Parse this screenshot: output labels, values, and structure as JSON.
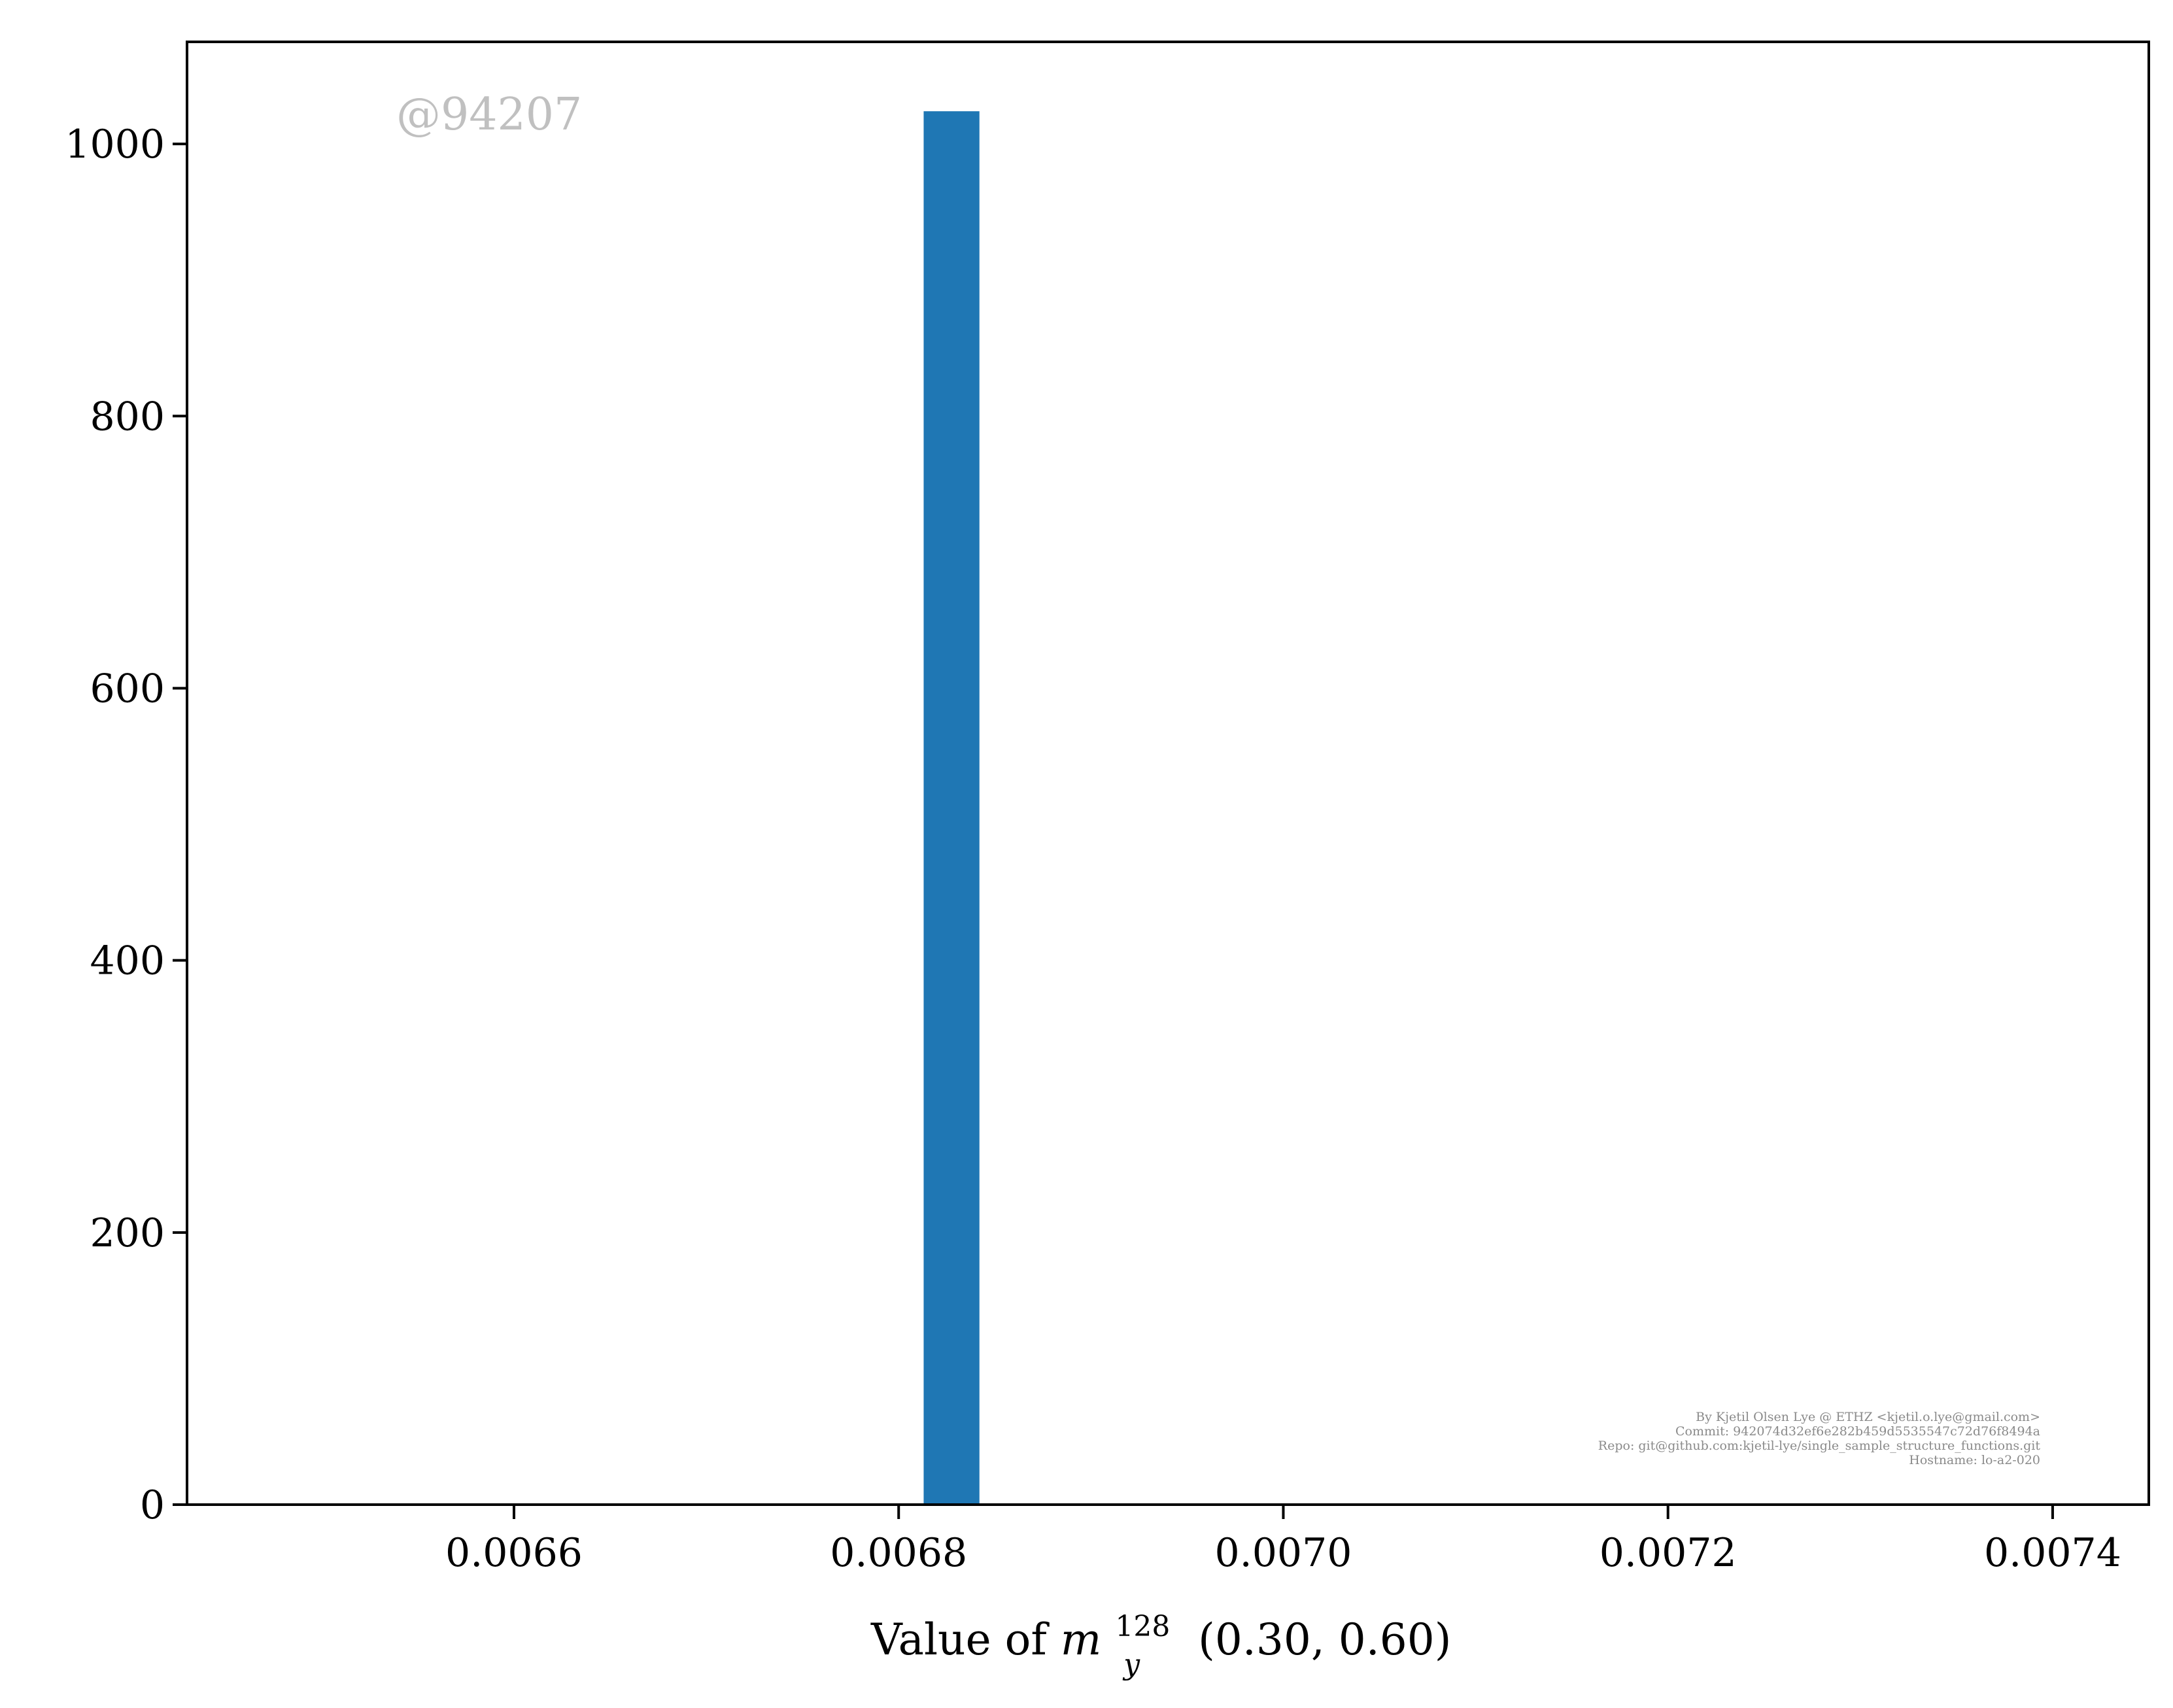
{
  "chart_data": {
    "type": "bar",
    "bins": [
      {
        "x0": 0.006813,
        "x1": 0.006842,
        "count": 1024
      }
    ],
    "xlim": [
      0.00643,
      0.00745
    ],
    "ylim": [
      0,
      1075
    ],
    "xticks": [
      0.0066,
      0.0068,
      0.007,
      0.0072,
      0.0074
    ],
    "xtick_labels": [
      "0.0066",
      "0.0068",
      "0.0070",
      "0.0072",
      "0.0074"
    ],
    "yticks": [
      0,
      200,
      400,
      600,
      800,
      1000
    ],
    "ytick_labels": [
      "0",
      "200",
      "400",
      "600",
      "800",
      "1000"
    ],
    "xlabel": {
      "prefix": "Value of ",
      "var": "m",
      "sup": "128",
      "sub": "y",
      "args": "(0.30, 0.60)"
    },
    "ylabel": "",
    "title": "",
    "grid": false,
    "bar_color": "#1f77b4"
  },
  "watermark": "@94207",
  "credits": [
    "By Kjetil Olsen Lye @ ETHZ <kjetil.o.lye@gmail.com>",
    "Commit: 942074d32ef6e282b459d5535547c72d76f8494a",
    "Repo: git@github.com:kjetil-lye/single_sample_structure_functions.git",
    "Hostname: lo-a2-020"
  ]
}
